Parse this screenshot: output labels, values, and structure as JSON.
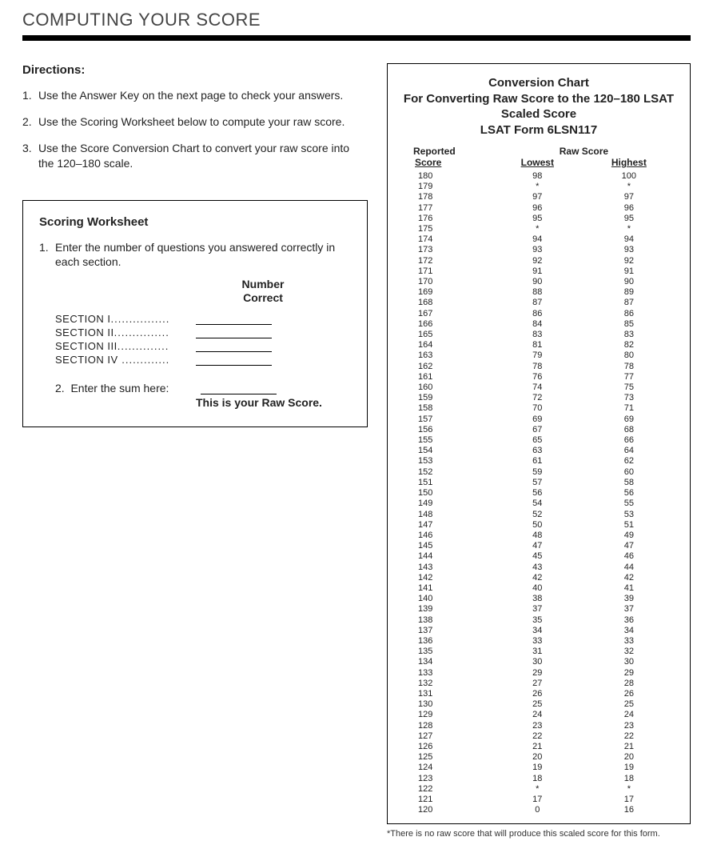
{
  "page": {
    "title": "COMPUTING YOUR SCORE"
  },
  "directions": {
    "heading": "Directions:",
    "items": [
      {
        "num": "1.",
        "text": "Use the Answer Key on the next page to check your answers."
      },
      {
        "num": "2.",
        "text": "Use the Scoring Worksheet below to compute your raw score."
      },
      {
        "num": "3.",
        "text": "Use the Score Conversion Chart to convert your raw score into the 120–180 scale."
      }
    ]
  },
  "worksheet": {
    "heading": "Scoring Worksheet",
    "step1_num": "1.",
    "step1_text": "Enter the number of questions you answered correctly in each section.",
    "number_label": "Number",
    "correct_label": "Correct",
    "sections": [
      {
        "label": "SECTION I",
        "dots": "................"
      },
      {
        "label": "SECTION II",
        "dots": "..............."
      },
      {
        "label": "SECTION III",
        "dots": ".............."
      },
      {
        "label": "SECTION IV",
        "dots": " ............."
      }
    ],
    "step2_num": "2.",
    "step2_text": "Enter the sum here:",
    "raw_score_note": "This is your Raw Score."
  },
  "chart": {
    "title_line1": "Conversion Chart",
    "title_line2": "For Converting Raw Score to the 120–180 LSAT",
    "title_line3": "Scaled Score",
    "title_line4": "LSAT Form 6LSN117",
    "head_reported": "Reported",
    "head_score": "Score",
    "head_raw": "Raw Score",
    "head_lowest": "Lowest",
    "head_highest": "Highest",
    "rows": [
      {
        "score": "180",
        "low": "98",
        "high": "100"
      },
      {
        "score": "179",
        "low": "*",
        "high": "*"
      },
      {
        "score": "178",
        "low": "97",
        "high": "97"
      },
      {
        "score": "177",
        "low": "96",
        "high": "96"
      },
      {
        "score": "176",
        "low": "95",
        "high": "95"
      },
      {
        "score": "175",
        "low": "*",
        "high": "*"
      },
      {
        "score": "174",
        "low": "94",
        "high": "94"
      },
      {
        "score": "173",
        "low": "93",
        "high": "93"
      },
      {
        "score": "172",
        "low": "92",
        "high": "92"
      },
      {
        "score": "171",
        "low": "91",
        "high": "91"
      },
      {
        "score": "170",
        "low": "90",
        "high": "90"
      },
      {
        "score": "169",
        "low": "88",
        "high": "89"
      },
      {
        "score": "168",
        "low": "87",
        "high": "87"
      },
      {
        "score": "167",
        "low": "86",
        "high": "86"
      },
      {
        "score": "166",
        "low": "84",
        "high": "85"
      },
      {
        "score": "165",
        "low": "83",
        "high": "83"
      },
      {
        "score": "164",
        "low": "81",
        "high": "82"
      },
      {
        "score": "163",
        "low": "79",
        "high": "80"
      },
      {
        "score": "162",
        "low": "78",
        "high": "78"
      },
      {
        "score": "161",
        "low": "76",
        "high": "77"
      },
      {
        "score": "160",
        "low": "74",
        "high": "75"
      },
      {
        "score": "159",
        "low": "72",
        "high": "73"
      },
      {
        "score": "158",
        "low": "70",
        "high": "71"
      },
      {
        "score": "157",
        "low": "69",
        "high": "69"
      },
      {
        "score": "156",
        "low": "67",
        "high": "68"
      },
      {
        "score": "155",
        "low": "65",
        "high": "66"
      },
      {
        "score": "154",
        "low": "63",
        "high": "64"
      },
      {
        "score": "153",
        "low": "61",
        "high": "62"
      },
      {
        "score": "152",
        "low": "59",
        "high": "60"
      },
      {
        "score": "151",
        "low": "57",
        "high": "58"
      },
      {
        "score": "150",
        "low": "56",
        "high": "56"
      },
      {
        "score": "149",
        "low": "54",
        "high": "55"
      },
      {
        "score": "148",
        "low": "52",
        "high": "53"
      },
      {
        "score": "147",
        "low": "50",
        "high": "51"
      },
      {
        "score": "146",
        "low": "48",
        "high": "49"
      },
      {
        "score": "145",
        "low": "47",
        "high": "47"
      },
      {
        "score": "144",
        "low": "45",
        "high": "46"
      },
      {
        "score": "143",
        "low": "43",
        "high": "44"
      },
      {
        "score": "142",
        "low": "42",
        "high": "42"
      },
      {
        "score": "141",
        "low": "40",
        "high": "41"
      },
      {
        "score": "140",
        "low": "38",
        "high": "39"
      },
      {
        "score": "139",
        "low": "37",
        "high": "37"
      },
      {
        "score": "138",
        "low": "35",
        "high": "36"
      },
      {
        "score": "137",
        "low": "34",
        "high": "34"
      },
      {
        "score": "136",
        "low": "33",
        "high": "33"
      },
      {
        "score": "135",
        "low": "31",
        "high": "32"
      },
      {
        "score": "134",
        "low": "30",
        "high": "30"
      },
      {
        "score": "133",
        "low": "29",
        "high": "29"
      },
      {
        "score": "132",
        "low": "27",
        "high": "28"
      },
      {
        "score": "131",
        "low": "26",
        "high": "26"
      },
      {
        "score": "130",
        "low": "25",
        "high": "25"
      },
      {
        "score": "129",
        "low": "24",
        "high": "24"
      },
      {
        "score": "128",
        "low": "23",
        "high": "23"
      },
      {
        "score": "127",
        "low": "22",
        "high": "22"
      },
      {
        "score": "126",
        "low": "21",
        "high": "21"
      },
      {
        "score": "125",
        "low": "20",
        "high": "20"
      },
      {
        "score": "124",
        "low": "19",
        "high": "19"
      },
      {
        "score": "123",
        "low": "18",
        "high": "18"
      },
      {
        "score": "122",
        "low": "*",
        "high": "*"
      },
      {
        "score": "121",
        "low": "17",
        "high": "17"
      },
      {
        "score": "120",
        "low": "0",
        "high": "16"
      }
    ],
    "footnote": "*There is no raw score that will produce this scaled score for this form."
  }
}
